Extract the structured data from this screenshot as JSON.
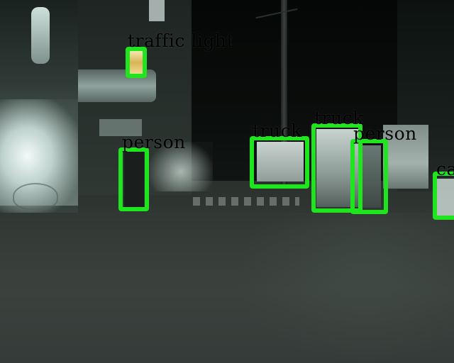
{
  "image": {
    "description_scene": "night street with detection boxes"
  },
  "detections": [
    {
      "label": "traffic light",
      "color": "#1ee51e"
    },
    {
      "label": "person",
      "color": "#1ee51e"
    },
    {
      "label": "truck",
      "color": "#1ee51e"
    },
    {
      "label": "truck",
      "color": "#1ee51e"
    },
    {
      "label": "person",
      "color": "#1ee51e"
    },
    {
      "label": "car",
      "color": "#1ee51e"
    }
  ]
}
